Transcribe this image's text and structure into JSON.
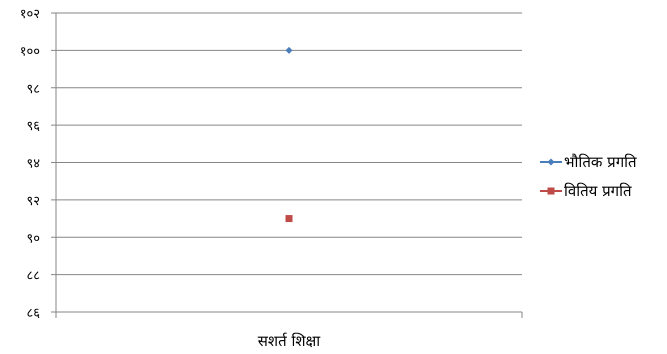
{
  "chart_data": {
    "type": "scatter",
    "categories": [
      "सशर्त शिक्षा"
    ],
    "y_ticks": [
      "८६",
      "८८",
      "९०",
      "९२",
      "९४",
      "९६",
      "९८",
      "१००",
      "१०२"
    ],
    "ylim": [
      86,
      102
    ],
    "grid": true,
    "legend_position": "right",
    "series": [
      {
        "name": "भौतिक प्रगति",
        "values": [
          100
        ],
        "color": "#4a7ebb",
        "marker": "diamond"
      },
      {
        "name": "वितिय प्रगति",
        "values": [
          91
        ],
        "color": "#be4b48",
        "marker": "square"
      }
    ]
  }
}
